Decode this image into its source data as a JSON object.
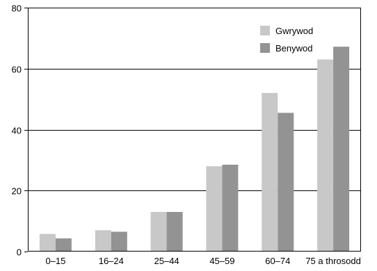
{
  "chart_data": {
    "type": "bar",
    "title": "",
    "xlabel": "",
    "ylabel": "",
    "categories": [
      "0–15",
      "16–24",
      "25–44",
      "45–59",
      "60–74",
      "75 a throsodd"
    ],
    "series": [
      {
        "name": "Gwrywod",
        "values": [
          5.8,
          7.0,
          13.0,
          28.0,
          52.0,
          63.0
        ],
        "color": "#c8c8c8"
      },
      {
        "name": "Benywod",
        "values": [
          4.3,
          6.5,
          13.0,
          28.5,
          45.5,
          67.2
        ],
        "color": "#939393"
      }
    ],
    "ylim": [
      0,
      80
    ],
    "yticks": [
      "0",
      "20",
      "40",
      "60",
      "80"
    ],
    "ytick_values": [
      0,
      20,
      40,
      60,
      80
    ],
    "grid": "horizontal",
    "legend": "top-right"
  }
}
